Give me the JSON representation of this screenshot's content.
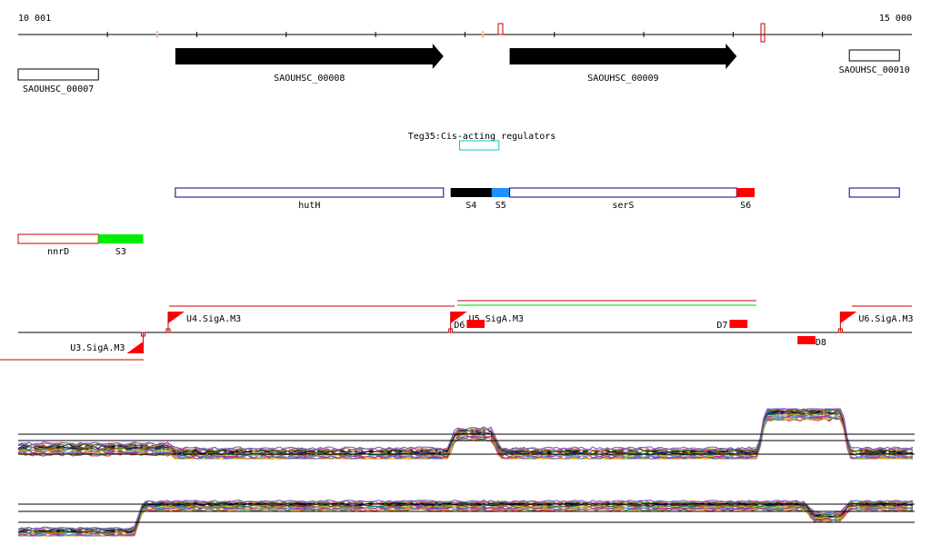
{
  "ruler": {
    "start_label": "10 001",
    "end_label": "15 000",
    "start_bp": 10001,
    "end_bp": 15000
  },
  "genes": [
    {
      "id": "SAOUHSC_00007",
      "strand": "none",
      "start_bp": 10001,
      "end_bp": 10450
    },
    {
      "id": "SAOUHSC_00008",
      "strand": "+",
      "start_bp": 10880,
      "end_bp": 12380
    },
    {
      "id": "SAOUHSC_00009",
      "strand": "+",
      "start_bp": 12750,
      "end_bp": 14020
    },
    {
      "id": "SAOUHSC_00010",
      "strand": "none",
      "start_bp": 14650,
      "end_bp": 14930
    }
  ],
  "cis_regulator": {
    "label": "Teg35:Cis-acting regulators",
    "start_bp": 12470,
    "end_bp": 12690,
    "color": "#00cccc"
  },
  "annotations_row1": [
    {
      "label": "hutH",
      "kind": "outline",
      "start_bp": 10880,
      "end_bp": 12380,
      "color": "#000080"
    },
    {
      "label": "S4",
      "kind": "fill",
      "start_bp": 12420,
      "end_bp": 12650,
      "color": "#000000"
    },
    {
      "label": "S5",
      "kind": "fill",
      "start_bp": 12650,
      "end_bp": 12750,
      "color": "#1e90ff"
    },
    {
      "label": "serS",
      "kind": "outline",
      "start_bp": 12750,
      "end_bp": 14020,
      "color": "#000080"
    },
    {
      "label": "S6",
      "kind": "fill",
      "start_bp": 14020,
      "end_bp": 14120,
      "color": "#ff0000"
    },
    {
      "label": "",
      "kind": "outline",
      "start_bp": 14650,
      "end_bp": 14930,
      "color": "#000080"
    }
  ],
  "annotations_row2": [
    {
      "label": "nnrD",
      "kind": "outline",
      "start_bp": 10001,
      "end_bp": 10450,
      "color": "#cc0000"
    },
    {
      "label": "S3",
      "kind": "fill",
      "start_bp": 10450,
      "end_bp": 10700,
      "color": "#00ee00"
    }
  ],
  "promoters": [
    {
      "label": "U3.SigA.M3",
      "position_bp": 10700,
      "strand": "-"
    },
    {
      "label": "U4.SigA.M3",
      "position_bp": 10840,
      "strand": "+"
    },
    {
      "label": "U5.SigA.M3",
      "position_bp": 12420,
      "strand": "+"
    },
    {
      "label": "U6.SigA.M3",
      "position_bp": 14600,
      "strand": "+"
    }
  ],
  "terminators": [
    {
      "label": "D6",
      "start_bp": 12510,
      "end_bp": 12610
    },
    {
      "label": "D7",
      "start_bp": 13980,
      "end_bp": 14080
    },
    {
      "label": "D8",
      "start_bp": 14360,
      "end_bp": 14460
    }
  ],
  "chart_data": [
    {
      "type": "line",
      "title": "",
      "xlabel": "",
      "ylabel": "",
      "x": [
        10001,
        10850,
        10880,
        12400,
        12450,
        12650,
        12700,
        14140,
        14180,
        14610,
        14650,
        15000
      ],
      "series": [
        {
          "values": [
            0.2,
            0.2,
            0.1,
            0.1,
            0.5,
            0.5,
            0.1,
            0.1,
            0.9,
            0.9,
            0.1,
            0.1
          ]
        }
      ]
    },
    {
      "type": "line",
      "title": "",
      "xlabel": "",
      "ylabel": "",
      "x": [
        10001,
        10650,
        10700,
        14400,
        14450,
        14600,
        14650,
        15000
      ],
      "series": [
        {
          "values": [
            0.1,
            0.1,
            0.8,
            0.8,
            0.5,
            0.5,
            0.8,
            0.8
          ]
        }
      ]
    }
  ]
}
